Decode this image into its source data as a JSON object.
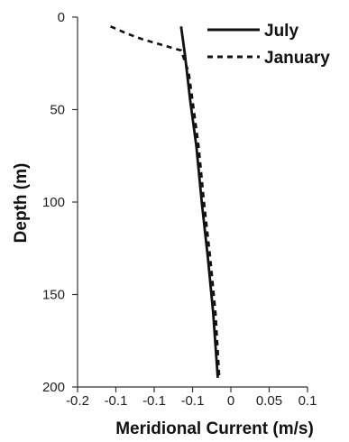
{
  "chart_data": {
    "type": "line",
    "title": "",
    "xlabel": "Meridional Current (m/s)",
    "ylabel": "Depth (m)",
    "xlim": [
      -0.2,
      0.1
    ],
    "ylim": [
      0,
      200
    ],
    "y_inverted": true,
    "x_ticks": [
      "-0.2",
      "-0.1",
      "-0.1",
      "-0.1",
      "0",
      "0.05",
      "0.1"
    ],
    "y_ticks": [
      "0",
      "50",
      "100",
      "150",
      "200"
    ],
    "grid": false,
    "legend_position": "top-right",
    "series": [
      {
        "name": "July",
        "style": "solid",
        "color": "#111111",
        "points": [
          {
            "x": -0.065,
            "y": 5
          },
          {
            "x": -0.06,
            "y": 20
          },
          {
            "x": -0.053,
            "y": 45
          },
          {
            "x": -0.045,
            "y": 70
          },
          {
            "x": -0.038,
            "y": 100
          },
          {
            "x": -0.03,
            "y": 130
          },
          {
            "x": -0.023,
            "y": 160
          },
          {
            "x": -0.017,
            "y": 195
          }
        ]
      },
      {
        "name": "January",
        "style": "dashed",
        "color": "#111111",
        "points": [
          {
            "x": -0.157,
            "y": 5
          },
          {
            "x": -0.135,
            "y": 9
          },
          {
            "x": -0.115,
            "y": 12
          },
          {
            "x": -0.09,
            "y": 15
          },
          {
            "x": -0.065,
            "y": 18
          },
          {
            "x": -0.055,
            "y": 30
          },
          {
            "x": -0.05,
            "y": 45
          },
          {
            "x": -0.042,
            "y": 70
          },
          {
            "x": -0.035,
            "y": 100
          },
          {
            "x": -0.027,
            "y": 130
          },
          {
            "x": -0.02,
            "y": 160
          },
          {
            "x": -0.015,
            "y": 195
          }
        ]
      }
    ]
  }
}
